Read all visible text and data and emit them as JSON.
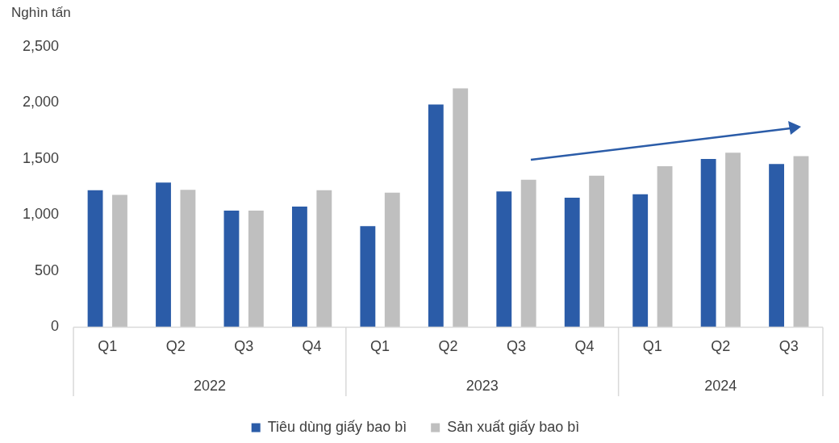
{
  "chart_data": {
    "type": "bar",
    "ylabel": "Nghìn tấn",
    "categories": [
      "Q1",
      "Q2",
      "Q3",
      "Q4",
      "Q1",
      "Q2",
      "Q3",
      "Q4",
      "Q1",
      "Q2",
      "Q3"
    ],
    "annotations": [
      "2022",
      "2023",
      "2024"
    ],
    "series": [
      {
        "name": "Tiêu dùng giấy bao bì",
        "color": "#2b5ca8",
        "values": [
          1220,
          1290,
          1040,
          1075,
          900,
          1985,
          1210,
          1155,
          1185,
          1500,
          1455
        ]
      },
      {
        "name": "Sản xuất giấy bao bì",
        "color": "#bfbfbf",
        "values": [
          1180,
          1225,
          1040,
          1220,
          1200,
          2130,
          1315,
          1350,
          1435,
          1555,
          1525
        ]
      }
    ],
    "ylim": [
      0,
      2500
    ],
    "yticks": [
      0,
      500,
      {
        "value": 1000,
        "label": "1,000"
      },
      {
        "value": 1500,
        "label": "1,500"
      },
      {
        "value": 2000,
        "label": "2,000"
      },
      {
        "value": 2500,
        "label": "2,500"
      }
    ],
    "grid": false,
    "legend": "bottom"
  }
}
